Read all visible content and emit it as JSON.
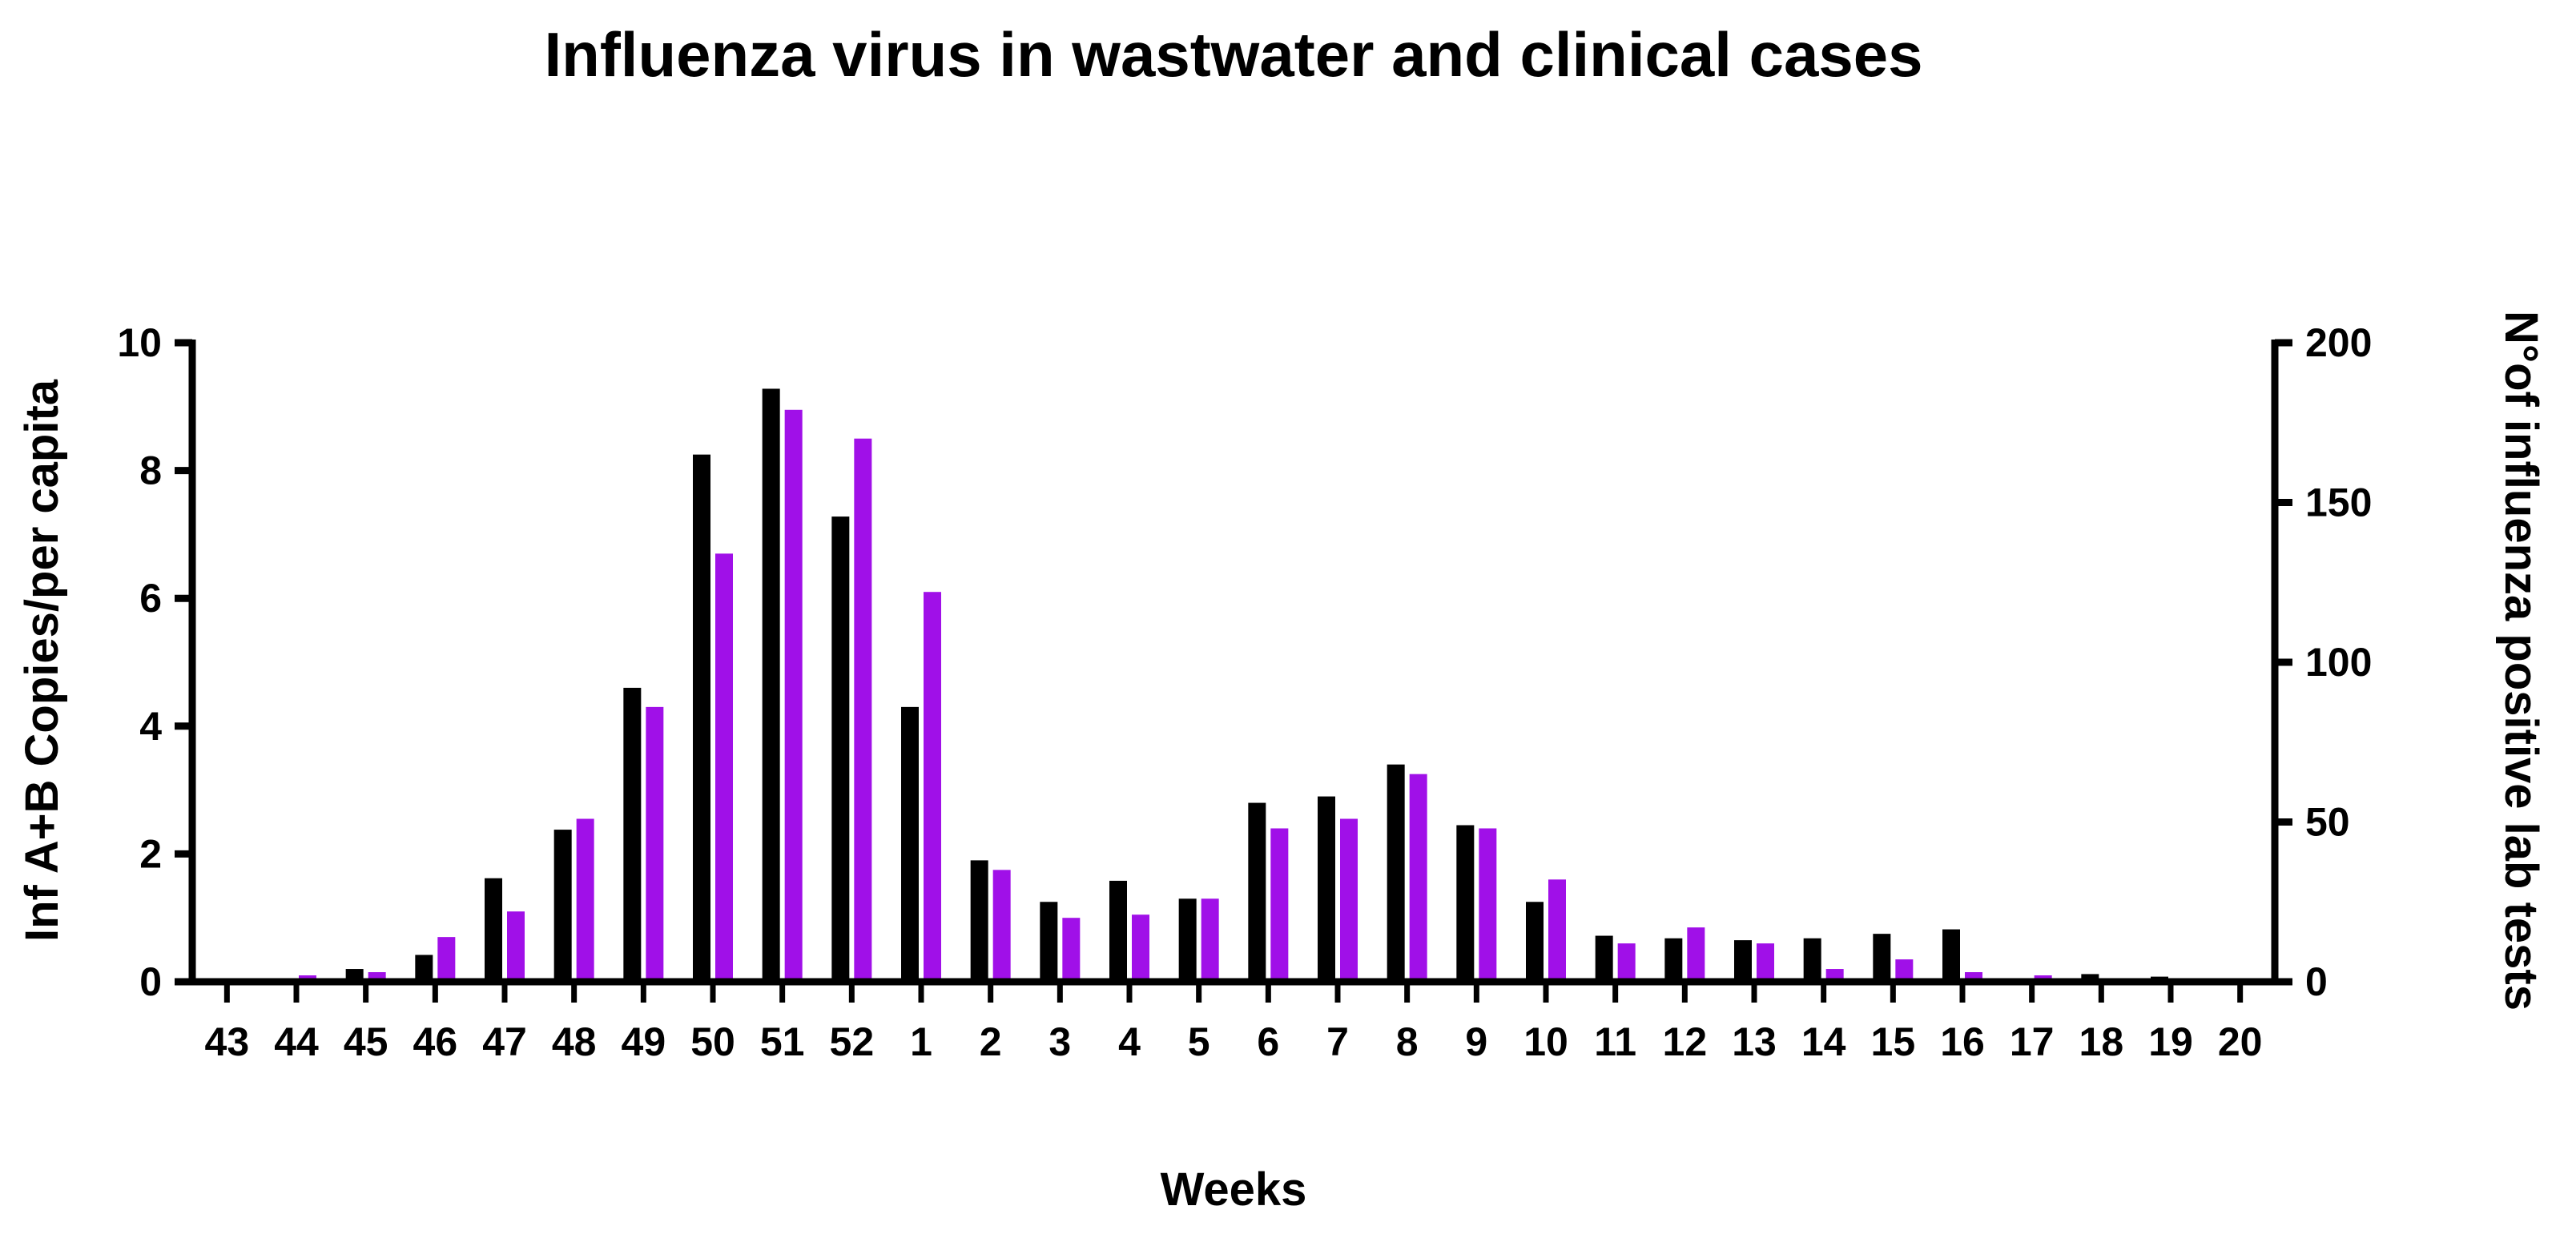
{
  "chart_data": {
    "type": "bar",
    "title": "Influenza virus in wastwater and clinical cases",
    "xlabel": "Weeks",
    "ylabel": "Inf A+B Copies/per capita",
    "ylabel_right": "N°of influenza positive lab tests",
    "ylim": [
      0,
      10
    ],
    "ylim_right": [
      0,
      200
    ],
    "yticks": [
      "0",
      "2",
      "4",
      "6",
      "8",
      "10"
    ],
    "yticks_right": [
      "0",
      "50",
      "100",
      "150",
      "200"
    ],
    "grid": false,
    "legend": "none",
    "categories": [
      "43",
      "44",
      "45",
      "46",
      "47",
      "48",
      "49",
      "50",
      "51",
      "52",
      "1",
      "2",
      "3",
      "4",
      "5",
      "6",
      "7",
      "8",
      "9",
      "10",
      "11",
      "12",
      "13",
      "14",
      "15",
      "16",
      "17",
      "18",
      "19",
      "20"
    ],
    "series": [
      {
        "axis": "left",
        "color": "#000000",
        "values": [
          0,
          0,
          0.2,
          0.42,
          1.62,
          2.38,
          4.6,
          8.25,
          9.28,
          7.28,
          4.3,
          1.9,
          1.25,
          1.58,
          1.3,
          2.8,
          2.9,
          3.4,
          2.45,
          1.25,
          0.72,
          0.68,
          0.65,
          0.68,
          0.75,
          0.82,
          0,
          0.12,
          0.08,
          0
        ]
      },
      {
        "axis": "right",
        "color": "#A010E8",
        "values": [
          0,
          2,
          3,
          14,
          22,
          51,
          86,
          134,
          179,
          170,
          122,
          35,
          20,
          21,
          26,
          48,
          51,
          65,
          48,
          32,
          12,
          17,
          12,
          4,
          7,
          3,
          2,
          0,
          0,
          0
        ]
      }
    ]
  }
}
